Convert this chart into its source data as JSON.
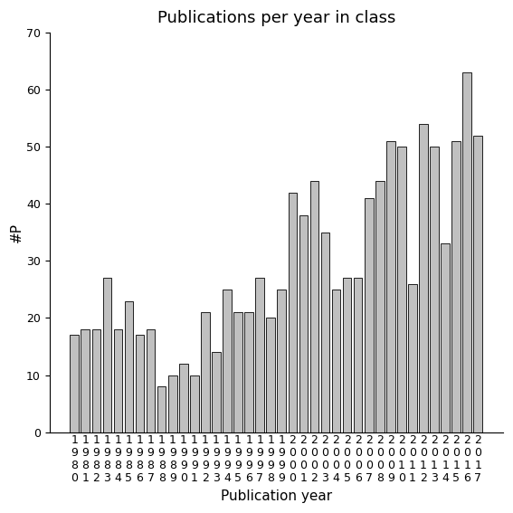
{
  "title": "Publications per year in class",
  "xlabel": "Publication year",
  "ylabel": "#P",
  "ylim": [
    0,
    70
  ],
  "yticks": [
    0,
    10,
    20,
    30,
    40,
    50,
    60,
    70
  ],
  "bar_color": "#c0c0c0",
  "bar_edgecolor": "#000000",
  "categories": [
    "1980",
    "1981",
    "1982",
    "1983",
    "1984",
    "1985",
    "1986",
    "1987",
    "1988",
    "1989",
    "1990",
    "1991",
    "1992",
    "1993",
    "1994",
    "1995",
    "1996",
    "1997",
    "1998",
    "1999",
    "2000",
    "2001",
    "2002",
    "2003",
    "2004",
    "2005",
    "2006",
    "2007",
    "2008",
    "2009",
    "2010",
    "2011",
    "2012",
    "2013",
    "2014",
    "2015",
    "2016",
    "2017"
  ],
  "values": [
    17,
    18,
    18,
    27,
    18,
    23,
    17,
    18,
    8,
    10,
    12,
    10,
    21,
    14,
    25,
    21,
    21,
    27,
    20,
    25,
    42,
    38,
    44,
    35,
    25,
    27,
    27,
    41,
    44,
    51,
    50,
    26,
    54,
    50,
    33,
    51,
    63,
    52
  ],
  "background_color": "#ffffff",
  "title_fontsize": 13,
  "label_fontsize": 11,
  "tick_fontsize": 9
}
